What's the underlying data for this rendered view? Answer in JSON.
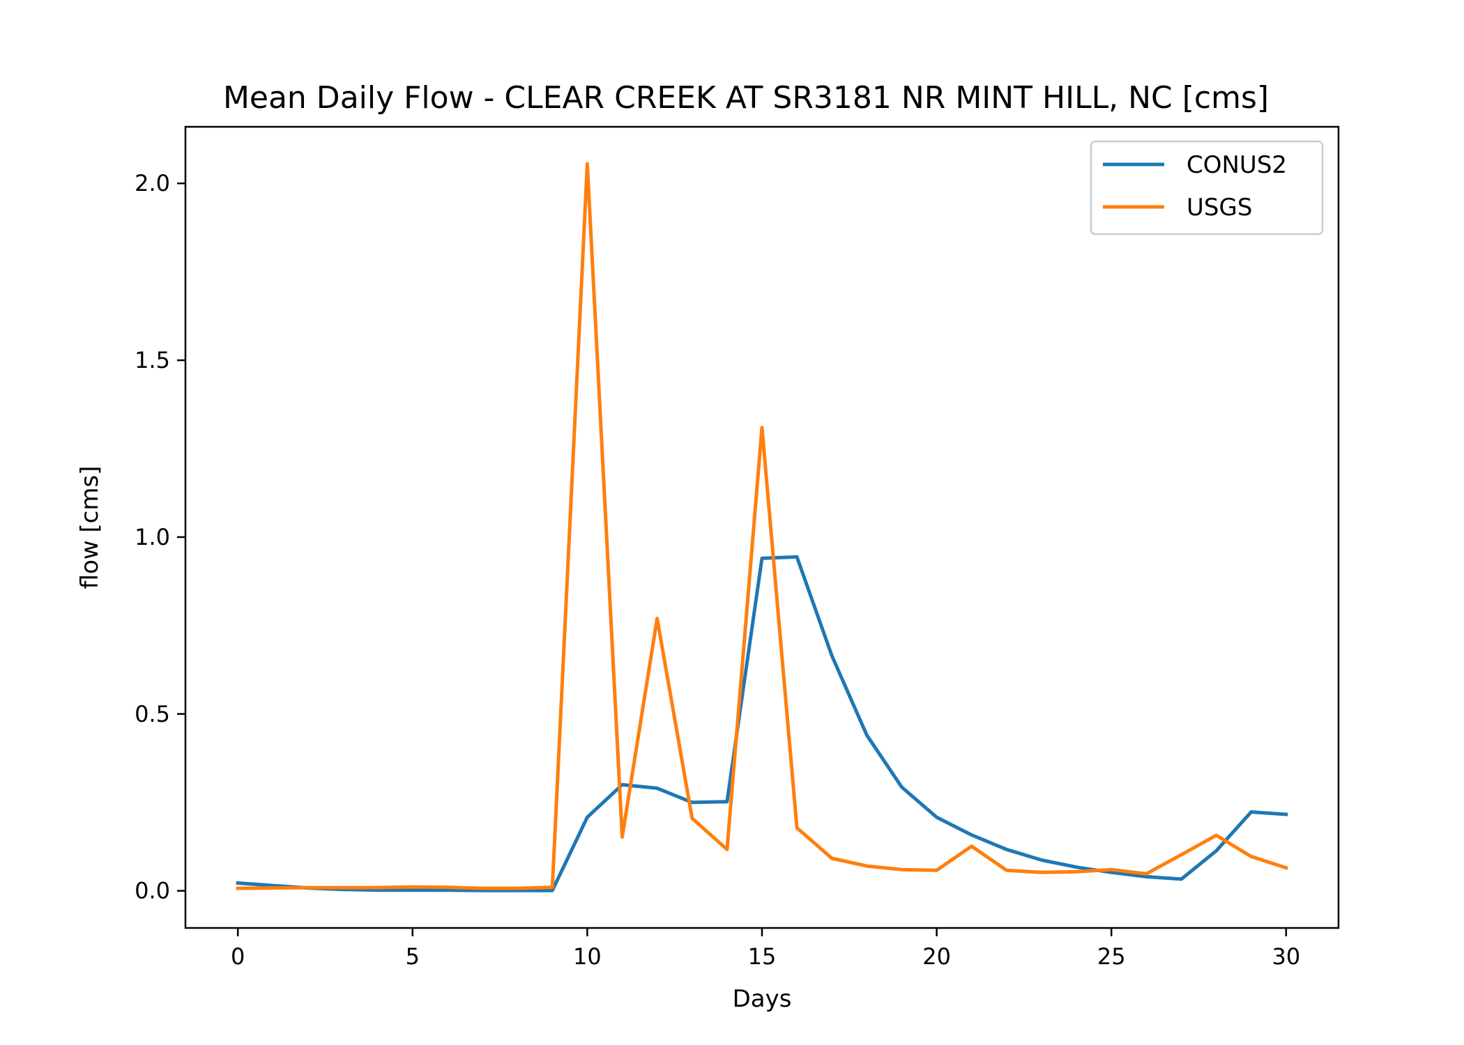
{
  "chart_data": {
    "type": "line",
    "title": "Mean Daily Flow - CLEAR CREEK AT SR3181 NR MINT HILL, NC [cms]",
    "xlabel": "Days",
    "ylabel": "flow [cms]",
    "xlim": [
      -1.5,
      31.5
    ],
    "ylim": [
      -0.105,
      2.16
    ],
    "xticks": [
      0,
      5,
      10,
      15,
      20,
      25,
      30
    ],
    "yticks": [
      0.0,
      0.5,
      1.0,
      1.5,
      2.0
    ],
    "ytick_labels": [
      "0.0",
      "0.5",
      "1.0",
      "1.5",
      "2.0"
    ],
    "grid": false,
    "legend_position": "top-right",
    "x": [
      0,
      1,
      2,
      3,
      4,
      5,
      6,
      7,
      8,
      9,
      10,
      11,
      12,
      13,
      14,
      15,
      16,
      17,
      18,
      19,
      20,
      21,
      22,
      23,
      24,
      25,
      26,
      27,
      28,
      29,
      30
    ],
    "series": [
      {
        "name": "CONUS2",
        "color": "#1f77b4",
        "values": [
          0.022,
          0.015,
          0.008,
          0.004,
          0.002,
          0.002,
          0.002,
          0.001,
          0.001,
          0.001,
          0.208,
          0.3,
          0.29,
          0.25,
          0.252,
          0.94,
          0.944,
          0.665,
          0.44,
          0.293,
          0.208,
          0.158,
          0.117,
          0.087,
          0.067,
          0.052,
          0.04,
          0.033,
          0.113,
          0.223,
          0.216
        ]
      },
      {
        "name": "USGS",
        "color": "#ff7f0e",
        "values": [
          0.007,
          0.008,
          0.009,
          0.009,
          0.009,
          0.011,
          0.01,
          0.007,
          0.007,
          0.01,
          2.055,
          0.152,
          0.77,
          0.205,
          0.117,
          1.31,
          0.178,
          0.092,
          0.07,
          0.06,
          0.058,
          0.126,
          0.058,
          0.052,
          0.054,
          0.06,
          0.048,
          0.102,
          0.157,
          0.097,
          0.065
        ]
      }
    ]
  }
}
